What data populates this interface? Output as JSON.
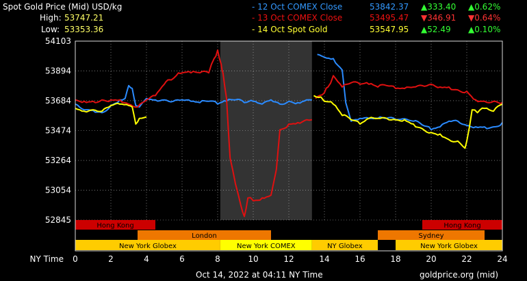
{
  "header": {
    "title": "Spot Gold Price (Mid) USD/kg",
    "high_label": "High:",
    "high_value": "53747.21",
    "low_label": "Low:",
    "low_value": "53353.36"
  },
  "legend": [
    {
      "label": "- 12 Oct COMEX Close",
      "price": "53842.37",
      "change": "▲333.40",
      "pct": "▲0.62%",
      "color": "#3399ff",
      "change_color": "#33ff33"
    },
    {
      "label": "- 13 Oct COMEX Close",
      "price": "53495.47",
      "change": "▼346.91",
      "pct": "▼0.64%",
      "color": "#ee1111",
      "change_color": "#ff3333"
    },
    {
      "label": "- 14 Oct Spot Gold",
      "price": "53547.95",
      "change": "▲52.49",
      "pct": "▲0.10%",
      "color": "#ffff33",
      "change_color": "#33ff33"
    }
  ],
  "footer": {
    "timestamp": "Oct 14, 2022 at 04:11 NY Time",
    "source": "goldprice.org (mid)"
  },
  "colors": {
    "blue": "#2b8bff",
    "red": "#e01010",
    "yellow": "#ffff00",
    "grid": "#bbbbbb",
    "shade": "#333333"
  },
  "chart_data": {
    "type": "line",
    "xlabel": "NY Time",
    "x_ticks": [
      "0",
      "2",
      "4",
      "6",
      "8",
      "10",
      "12",
      "14",
      "16",
      "18",
      "20",
      "22",
      "24"
    ],
    "y_ticks": [
      "54103",
      "53894",
      "53684",
      "53474",
      "53264",
      "53054",
      "52845"
    ],
    "xlim": [
      0,
      24
    ],
    "ylim": [
      52845,
      54103
    ],
    "grid": true,
    "shaded_region": [
      8.15,
      13.3
    ],
    "series": [
      {
        "name": "12 Oct COMEX Close",
        "color": "#2b8bff",
        "segments": [
          [
            [
              0,
              53660
            ],
            [
              0.5,
              53620
            ],
            [
              1,
              53615
            ],
            [
              1.5,
              53600
            ],
            [
              2,
              53650
            ],
            [
              2.5,
              53690
            ],
            [
              2.8,
              53700
            ],
            [
              3,
              53790
            ],
            [
              3.2,
              53770
            ],
            [
              3.4,
              53650
            ],
            [
              3.6,
              53640
            ],
            [
              4,
              53700
            ],
            [
              4.5,
              53690
            ],
            [
              5,
              53690
            ],
            [
              5.5,
              53680
            ],
            [
              6,
              53690
            ],
            [
              6.5,
              53680
            ],
            [
              7,
              53670
            ],
            [
              7.5,
              53680
            ],
            [
              8,
              53660
            ],
            [
              8.5,
              53680
            ],
            [
              9,
              53690
            ],
            [
              9.5,
              53670
            ],
            [
              10,
              53680
            ],
            [
              10.5,
              53660
            ],
            [
              11,
              53690
            ],
            [
              11.5,
              53660
            ],
            [
              12,
              53680
            ],
            [
              12.5,
              53670
            ],
            [
              13,
              53690
            ],
            [
              13.3,
              53690
            ]
          ],
          [
            [
              13.6,
              54010
            ],
            [
              14,
              53990
            ],
            [
              14.5,
              53980
            ],
            [
              15,
              53900
            ],
            [
              15.2,
              53670
            ],
            [
              15.5,
              53540
            ],
            [
              16,
              53560
            ],
            [
              16.5,
              53560
            ],
            [
              17,
              53560
            ],
            [
              17.5,
              53560
            ],
            [
              18,
              53550
            ],
            [
              19,
              53540
            ],
            [
              20,
              53480
            ],
            [
              20.5,
              53500
            ],
            [
              21,
              53540
            ],
            [
              21.5,
              53540
            ],
            [
              22,
              53510
            ],
            [
              22.5,
              53500
            ],
            [
              23,
              53500
            ],
            [
              23.5,
              53500
            ],
            [
              24,
              53530
            ]
          ]
        ]
      },
      {
        "name": "13 Oct COMEX Close",
        "color": "#e01010",
        "segments": [
          [
            [
              0,
              53690
            ],
            [
              0.5,
              53680
            ],
            [
              1,
              53680
            ],
            [
              1.5,
              53690
            ],
            [
              2,
              53690
            ],
            [
              2.5,
              53690
            ],
            [
              3,
              53660
            ],
            [
              3.5,
              53640
            ],
            [
              4,
              53690
            ],
            [
              4.5,
              53720
            ],
            [
              5,
              53800
            ],
            [
              5.2,
              53830
            ],
            [
              5.4,
              53830
            ],
            [
              5.8,
              53880
            ],
            [
              6,
              53880
            ],
            [
              6.5,
              53880
            ],
            [
              7,
              53880
            ],
            [
              7.5,
              53880
            ],
            [
              7.8,
              53980
            ],
            [
              8,
              54040
            ],
            [
              8.2,
              53940
            ],
            [
              8.3,
              53880
            ],
            [
              8.5,
              53700
            ],
            [
              8.7,
              53280
            ],
            [
              9,
              53100
            ],
            [
              9.3,
              52950
            ],
            [
              9.5,
              52870
            ],
            [
              9.7,
              53000
            ],
            [
              10,
              52980
            ],
            [
              10.5,
              53000
            ],
            [
              11,
              53020
            ],
            [
              11.3,
              53200
            ],
            [
              11.5,
              53480
            ],
            [
              12,
              53520
            ],
            [
              12.5,
              53530
            ],
            [
              13,
              53550
            ],
            [
              13.3,
              53550
            ]
          ],
          [
            [
              13.5,
              53700
            ],
            [
              14,
              53740
            ],
            [
              14.2,
              53780
            ],
            [
              14.5,
              53860
            ],
            [
              15,
              53780
            ],
            [
              15.5,
              53810
            ],
            [
              16,
              53800
            ],
            [
              16.5,
              53800
            ],
            [
              17,
              53780
            ],
            [
              17.5,
              53790
            ],
            [
              18,
              53770
            ],
            [
              18.5,
              53770
            ],
            [
              19,
              53780
            ],
            [
              19.5,
              53790
            ],
            [
              20,
              53800
            ],
            [
              20.5,
              53780
            ],
            [
              21,
              53780
            ],
            [
              21.5,
              53760
            ],
            [
              22,
              53750
            ],
            [
              22.5,
              53690
            ],
            [
              23,
              53680
            ],
            [
              23.5,
              53680
            ],
            [
              24,
              53670
            ]
          ]
        ]
      },
      {
        "name": "14 Oct Spot Gold",
        "color": "#ffff00",
        "segments": [
          [
            [
              0,
              53630
            ],
            [
              0.5,
              53610
            ],
            [
              1,
              53620
            ],
            [
              1.5,
              53610
            ],
            [
              2,
              53650
            ],
            [
              2.5,
              53660
            ],
            [
              3,
              53650
            ],
            [
              3.2,
              53640
            ],
            [
              3.4,
              53520
            ],
            [
              3.6,
              53560
            ],
            [
              4,
              53570
            ]
          ],
          [
            [
              13.4,
              53720
            ],
            [
              13.8,
              53710
            ],
            [
              14,
              53680
            ],
            [
              14.5,
              53660
            ],
            [
              15,
              53580
            ],
            [
              15.5,
              53550
            ],
            [
              16,
              53520
            ],
            [
              16.5,
              53560
            ],
            [
              17,
              53560
            ],
            [
              17.5,
              53560
            ],
            [
              18,
              53550
            ],
            [
              18.5,
              53550
            ],
            [
              19,
              53520
            ],
            [
              20,
              53460
            ],
            [
              20.5,
              53450
            ],
            [
              21,
              53410
            ],
            [
              21.5,
              53400
            ],
            [
              21.9,
              53350
            ],
            [
              22,
              53400
            ],
            [
              22.3,
              53620
            ],
            [
              22.6,
              53600
            ],
            [
              23,
              53630
            ],
            [
              23.5,
              53610
            ],
            [
              24,
              53660
            ]
          ]
        ]
      }
    ],
    "sessions": [
      {
        "label": "Hong Kong",
        "row": 1,
        "start": 0,
        "end": 4.5,
        "color": "#cc0000"
      },
      {
        "label": "Hong Kong",
        "row": 1,
        "start": 19.5,
        "end": 24,
        "color": "#cc0000"
      },
      {
        "label": "London",
        "row": 2,
        "start": 3.5,
        "end": 11.0,
        "color": "#ee7700"
      },
      {
        "label": "Sydney",
        "row": 2,
        "start": 17.0,
        "end": 23.0,
        "color": "#ee7700"
      },
      {
        "label": "New York Globex",
        "row": 3,
        "start": 0,
        "end": 8.15,
        "color": "#ffcc00"
      },
      {
        "label": "New York COMEX",
        "row": 3,
        "start": 8.15,
        "end": 13.3,
        "color": "#ffff00"
      },
      {
        "label": "NY Globex",
        "row": 3,
        "start": 13.3,
        "end": 17.0,
        "color": "#ffcc00"
      },
      {
        "label": "New York Globex",
        "row": 3,
        "start": 18.0,
        "end": 24,
        "color": "#ffcc00"
      }
    ]
  }
}
